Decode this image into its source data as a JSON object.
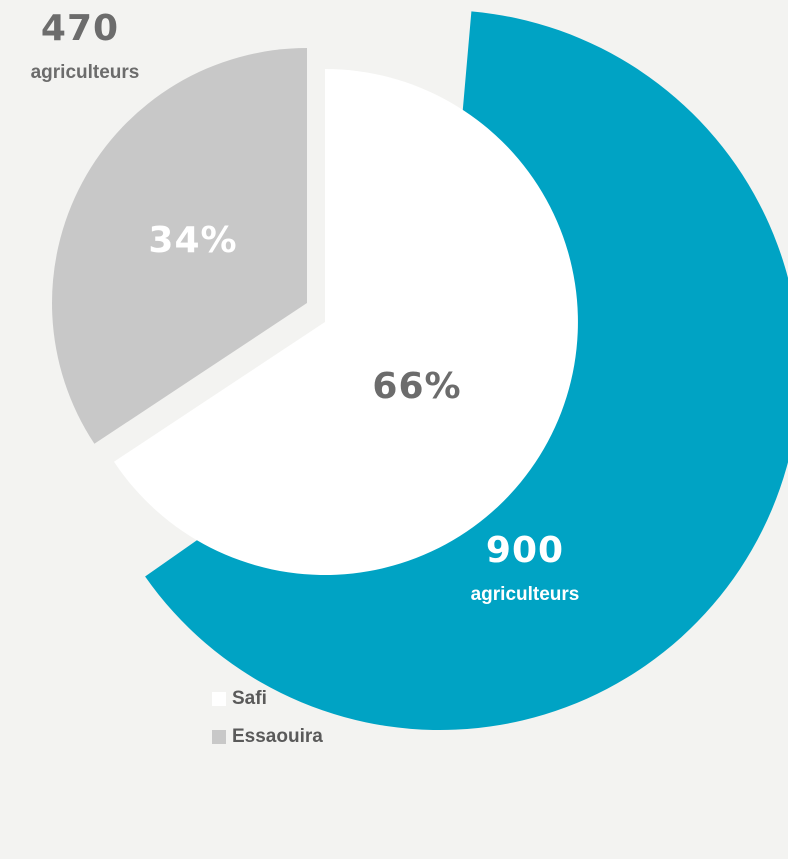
{
  "chart_data": {
    "type": "pie",
    "slices": [
      {
        "name": "Safi",
        "value": 900,
        "percent_label": "66%",
        "value_label": "900",
        "unit_label": "agriculteurs",
        "color": "#ffffff"
      },
      {
        "name": "Essaouira",
        "value": 470,
        "percent_label": "34%",
        "value_label": "470",
        "unit_label": "agriculteurs",
        "color": "#c8c8c8"
      }
    ],
    "ring_color": "#00a3c4",
    "legend": {
      "placement": "bottom-left",
      "entries": [
        {
          "label": "Safi",
          "color": "#ffffff"
        },
        {
          "label": "Essaouira",
          "color": "#c8c8c8"
        }
      ]
    }
  }
}
